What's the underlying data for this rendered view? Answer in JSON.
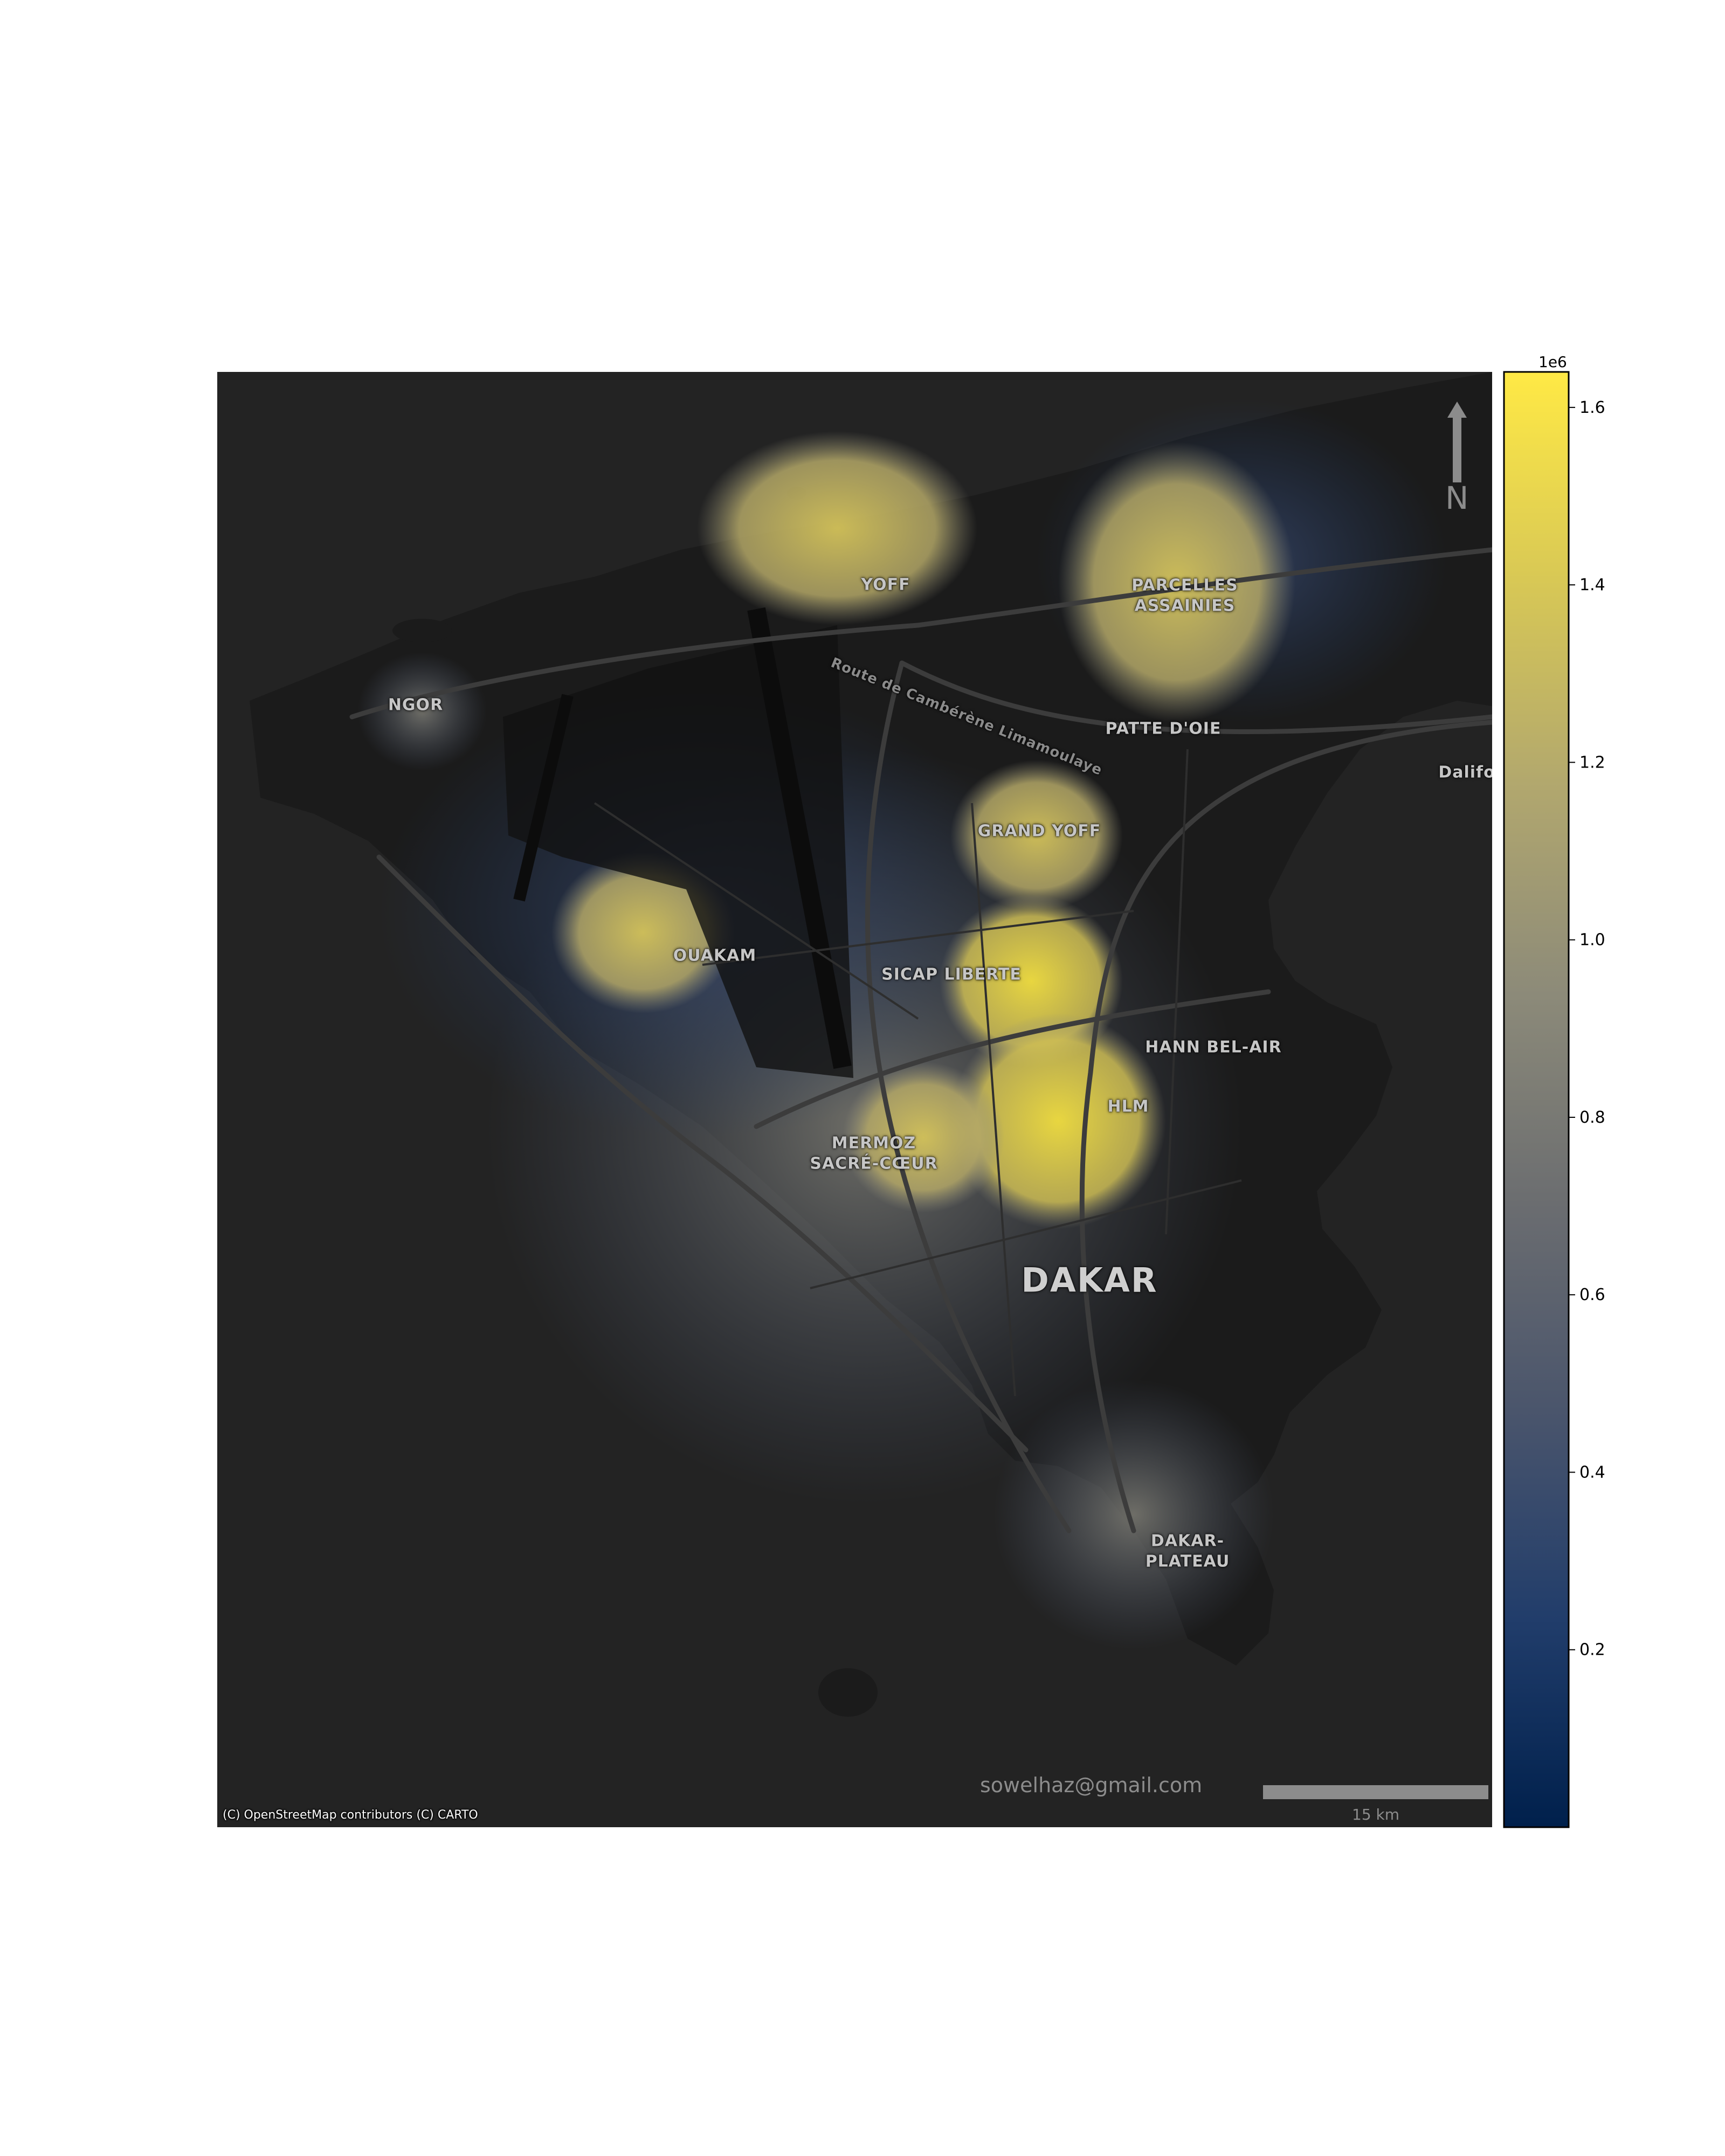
{
  "map": {
    "places": [
      {
        "id": "yoff",
        "label": "YOFF"
      },
      {
        "id": "parcelles",
        "label": "PARCELLES\nASSAINIES"
      },
      {
        "id": "ngor",
        "label": "NGOR"
      },
      {
        "id": "patte",
        "label": "PATTE D'OIE"
      },
      {
        "id": "dalifort",
        "label": "Dalifo"
      },
      {
        "id": "grandyoff",
        "label": "GRAND YOFF"
      },
      {
        "id": "ouakam",
        "label": "OUAKAM"
      },
      {
        "id": "sicap",
        "label": "SICAP LIBERTE"
      },
      {
        "id": "hann",
        "label": "HANN BEL-AIR"
      },
      {
        "id": "hlm",
        "label": "HLM"
      },
      {
        "id": "mermoz",
        "label": "MERMOZ\nSACRÉ-CŒUR"
      },
      {
        "id": "dakar",
        "label": "DAKAR"
      },
      {
        "id": "plateau",
        "label": "DAKAR-\nPLATEAU"
      },
      {
        "id": "road",
        "label": "Route de Cambérène Limamoulaye"
      }
    ],
    "attribution": "(C) OpenStreetMap contributors (C) CARTO",
    "watermark": "sowelhaz@gmail.com",
    "scalebar_label": "15 km",
    "north_label": "N",
    "colors": {
      "background": "#232323",
      "land": "#1c1c1c",
      "roads": "#3a3a3a"
    }
  },
  "colorbar": {
    "exponent_label": "1e6",
    "min": 0,
    "max": 1.64,
    "ticks": [
      {
        "value": 0.2,
        "label": "0.2"
      },
      {
        "value": 0.4,
        "label": "0.4"
      },
      {
        "value": 0.6,
        "label": "0.6"
      },
      {
        "value": 0.8,
        "label": "0.8"
      },
      {
        "value": 1.0,
        "label": "1.0"
      },
      {
        "value": 1.2,
        "label": "1.2"
      },
      {
        "value": 1.4,
        "label": "1.4"
      },
      {
        "value": 1.6,
        "label": "1.6"
      }
    ],
    "colormap": "cividis",
    "colors": [
      "#00204c",
      "#213d6b",
      "#4a556c",
      "#6b6d70",
      "#8c8a79",
      "#b1a76e",
      "#d8c855",
      "#ffe945"
    ]
  }
}
